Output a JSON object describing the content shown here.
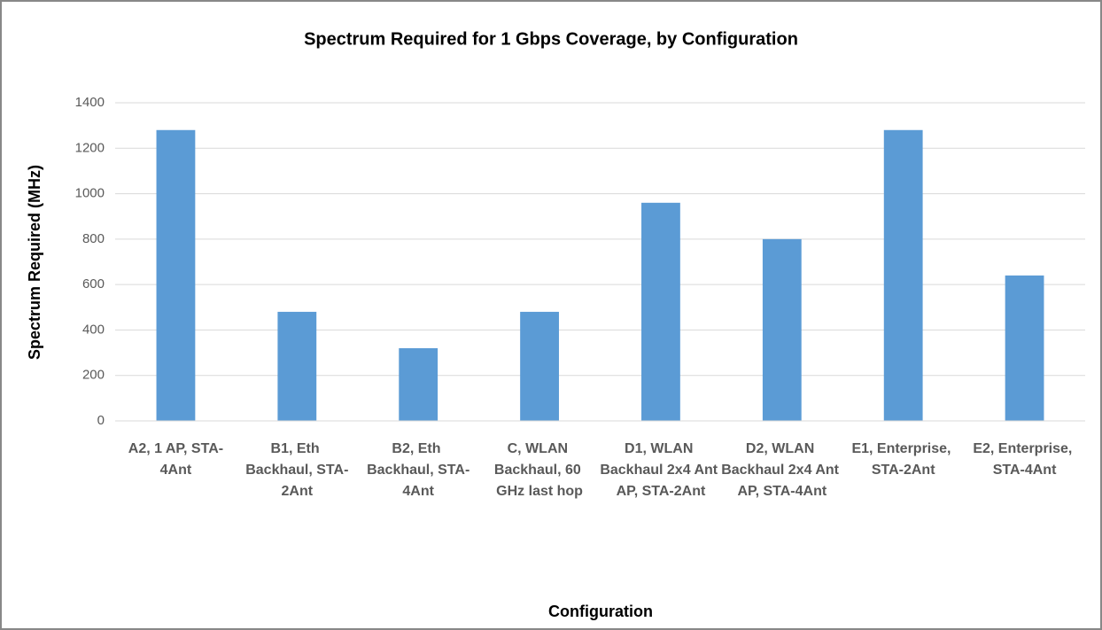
{
  "chart_data": {
    "type": "bar",
    "title": "Spectrum Required for 1 Gbps Coverage, by Configuration",
    "x_label": "Configuration",
    "y_label": "Spectrum Required (MHz)",
    "categories": [
      "A2, 1 AP, STA-4Ant",
      "B1, Eth Backhaul, STA-2Ant",
      "B2, Eth Backhaul, STA-4Ant",
      "C, WLAN Backhaul, 60 GHz last hop",
      "D1, WLAN Backhaul 2x4 Ant AP, STA-2Ant",
      "D2, WLAN Backhaul 2x4 Ant AP, STA-4Ant",
      "E1, Enterprise, STA-2Ant",
      "E2, Enterprise, STA-4Ant"
    ],
    "values": [
      1280,
      480,
      320,
      480,
      960,
      800,
      1280,
      640
    ],
    "color": "#5b9bd5",
    "ylim": [
      0,
      1400
    ],
    "yticks": [
      0,
      200,
      400,
      600,
      800,
      1000,
      1200,
      1400
    ],
    "grid": true
  }
}
